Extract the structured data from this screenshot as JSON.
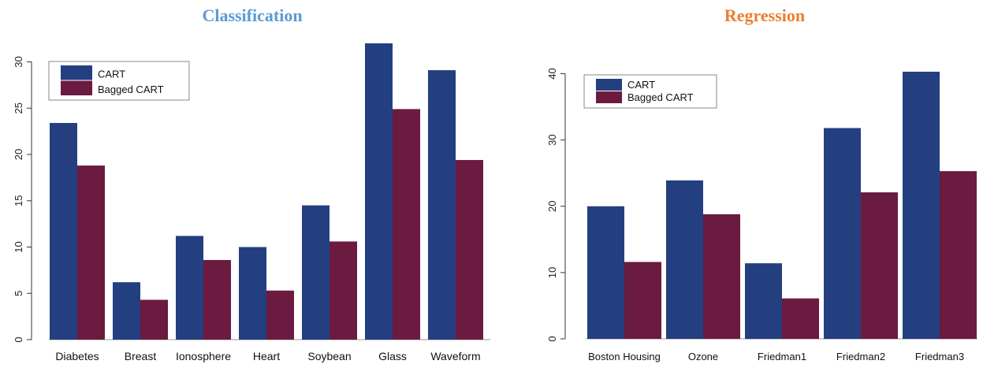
{
  "colors": {
    "cart": "#233f80",
    "bagged": "#6b1a40",
    "title_left": "#5b9bd5",
    "title_right": "#ed7d31"
  },
  "chart_data": [
    {
      "type": "bar",
      "title": "Classification",
      "categories": [
        "Diabetes",
        "Breast",
        "Ionosphere",
        "Heart",
        "Soybean",
        "Glass",
        "Waveform"
      ],
      "series": [
        {
          "name": "CART",
          "values": [
            23.4,
            6.2,
            11.2,
            10.0,
            14.5,
            32.0,
            29.1
          ]
        },
        {
          "name": "Bagged CART",
          "values": [
            18.8,
            4.3,
            8.6,
            5.3,
            10.6,
            24.9,
            19.4
          ]
        }
      ],
      "ylim": [
        0,
        32
      ],
      "yticks": [
        "0",
        "5",
        "10",
        "15",
        "20",
        "25",
        "30"
      ],
      "legend_position": "top-left",
      "xlabel": "",
      "ylabel": ""
    },
    {
      "type": "bar",
      "title": "Regression",
      "categories": [
        "Boston Housing",
        "Ozone",
        "Friedman1",
        "Friedman2",
        "Friedman3"
      ],
      "series": [
        {
          "name": "CART",
          "values": [
            20.0,
            23.9,
            11.4,
            31.8,
            40.3
          ]
        },
        {
          "name": "Bagged CART",
          "values": [
            11.6,
            18.8,
            6.1,
            22.1,
            25.3
          ]
        }
      ],
      "ylim": [
        0,
        40.3
      ],
      "yticks": [
        "0",
        "10",
        "20",
        "30",
        "40"
      ],
      "legend_position": "top-left",
      "xlabel": "",
      "ylabel": ""
    }
  ]
}
